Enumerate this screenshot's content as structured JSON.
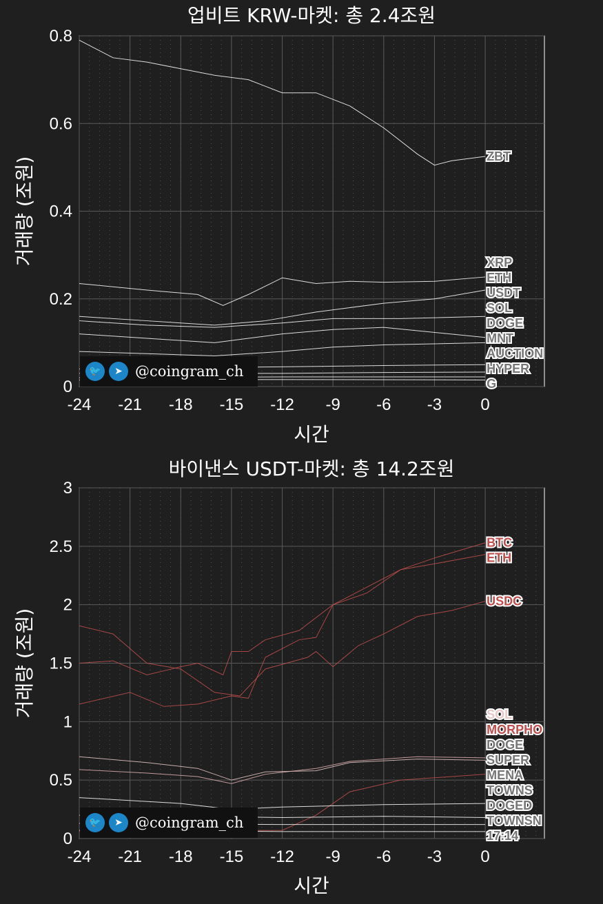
{
  "watermark": {
    "handle": "@coingram_ch",
    "icons": [
      "twitter-icon",
      "telegram-icon"
    ]
  },
  "chart_data": [
    {
      "type": "line",
      "title": "업비트 KRW-마켓: 총 2.4조원",
      "xlabel": "시간",
      "ylabel": "거래량 (조원)",
      "xlim": [
        -24,
        3.5
      ],
      "ylim": [
        0,
        0.8
      ],
      "xticks": [
        -24,
        -21,
        -18,
        -15,
        -12,
        -9,
        -6,
        -3,
        0
      ],
      "yticks": [
        0,
        0.2,
        0.4,
        0.6,
        0.8
      ],
      "ytick_labels": [
        "0",
        "0.2",
        "0.4",
        "0.6",
        "0.8"
      ],
      "grid": true,
      "series": [
        {
          "name": "ZBT",
          "color": "#ffffff",
          "x": [
            -24,
            -22,
            -20,
            -18,
            -16,
            -14,
            -12,
            -10,
            -8,
            -6,
            -4,
            -3,
            -2,
            0
          ],
          "y": [
            0.79,
            0.75,
            0.74,
            0.725,
            0.71,
            0.7,
            0.67,
            0.67,
            0.64,
            0.59,
            0.53,
            0.505,
            0.515,
            0.525
          ]
        },
        {
          "name": "XRP",
          "color": "#ffffff",
          "x": [
            -24,
            -20,
            -17,
            -15.5,
            -14,
            -12,
            -10,
            -8,
            -6,
            -3,
            0
          ],
          "y": [
            0.235,
            0.22,
            0.21,
            0.185,
            0.21,
            0.248,
            0.235,
            0.24,
            0.238,
            0.24,
            0.25
          ]
        },
        {
          "name": "ETH",
          "color": "#ffffff",
          "x": [
            -24,
            -20,
            -16,
            -13,
            -10,
            -8,
            -6,
            -3,
            0
          ],
          "y": [
            0.16,
            0.15,
            0.14,
            0.15,
            0.17,
            0.18,
            0.19,
            0.2,
            0.22
          ]
        },
        {
          "name": "USDT",
          "color": "#ffffff",
          "x": [
            -24,
            -20,
            -16,
            -12,
            -9,
            -5,
            0
          ],
          "y": [
            0.15,
            0.14,
            0.135,
            0.145,
            0.155,
            0.155,
            0.16
          ]
        },
        {
          "name": "SOL",
          "color": "#ffffff",
          "x": [
            -24,
            -20,
            -16,
            -14,
            -12,
            -9,
            -6,
            0
          ],
          "y": [
            0.12,
            0.11,
            0.1,
            0.11,
            0.12,
            0.13,
            0.135,
            0.112
          ]
        },
        {
          "name": "DOGE",
          "color": "#ffffff",
          "x": [
            -24,
            -20,
            -16,
            -14,
            -12,
            -9,
            -6,
            0
          ],
          "y": [
            0.08,
            0.075,
            0.07,
            0.075,
            0.08,
            0.09,
            0.095,
            0.1
          ]
        },
        {
          "name": "MNT",
          "color": "#ffffff",
          "x": [
            -24,
            -12,
            -6,
            0
          ],
          "y": [
            0.04,
            0.045,
            0.048,
            0.05
          ]
        },
        {
          "name": "AUCTION",
          "color": "#ffffff",
          "x": [
            -24,
            -12,
            -6,
            0
          ],
          "y": [
            0.03,
            0.03,
            0.032,
            0.033
          ]
        },
        {
          "name": "",
          "color": "#ffffff",
          "x": [
            -24,
            -12,
            0
          ],
          "y": [
            0.02,
            0.022,
            0.022
          ]
        },
        {
          "name": "HYPER",
          "color": "#ffffff",
          "x": [
            -24,
            -12,
            0
          ],
          "y": [
            0.015,
            0.016,
            0.015
          ]
        }
      ],
      "end_labels": [
        "ZBT",
        "XRP",
        "ETH",
        "USDT",
        "SOL",
        "DOGE",
        "MNT",
        "AUCTION",
        "HYPER",
        "G"
      ]
    },
    {
      "type": "line",
      "title": "바이낸스 USDT-마켓: 총 14.2조원",
      "xlabel": "시간",
      "ylabel": "거래량 (조원)",
      "xlim": [
        -24,
        3.5
      ],
      "ylim": [
        0,
        3
      ],
      "xticks": [
        -24,
        -21,
        -18,
        -15,
        -12,
        -9,
        -6,
        -3,
        0
      ],
      "yticks": [
        0,
        0.5,
        1,
        1.5,
        2,
        2.5,
        3
      ],
      "ytick_labels": [
        "0",
        "0.5",
        "1",
        "1.5",
        "2",
        "2.5",
        "3"
      ],
      "grid": true,
      "series": [
        {
          "name": "BTC",
          "color": "#c0504d",
          "x": [
            -24,
            -22,
            -20,
            -18,
            -17,
            -15.5,
            -15,
            -14,
            -13,
            -11,
            -9,
            -7,
            -5,
            -3,
            0
          ],
          "y": [
            1.5,
            1.52,
            1.4,
            1.47,
            1.5,
            1.4,
            1.6,
            1.6,
            1.7,
            1.78,
            2.0,
            2.1,
            2.3,
            2.4,
            2.53
          ]
        },
        {
          "name": "ETH",
          "color": "#c0504d",
          "x": [
            -24,
            -21,
            -19,
            -17,
            -15,
            -14,
            -13,
            -11,
            -10,
            -9,
            -7,
            -5,
            -3,
            0
          ],
          "y": [
            1.15,
            1.25,
            1.13,
            1.15,
            1.22,
            1.2,
            1.55,
            1.7,
            1.72,
            2.0,
            2.15,
            2.3,
            2.35,
            2.43
          ]
        },
        {
          "name": "USDC",
          "color": "#c0504d",
          "x": [
            -24,
            -22,
            -20,
            -18,
            -16,
            -14.5,
            -13,
            -10.5,
            -10,
            -9,
            -7.5,
            -6,
            -4,
            -2,
            0
          ],
          "y": [
            1.82,
            1.75,
            1.5,
            1.45,
            1.25,
            1.22,
            1.45,
            1.55,
            1.6,
            1.47,
            1.65,
            1.75,
            1.9,
            1.95,
            2.03
          ]
        },
        {
          "name": "SOL",
          "color": "#e8c8c8",
          "x": [
            -24,
            -20,
            -17,
            -15,
            -13,
            -10,
            -8,
            -4,
            0
          ],
          "y": [
            0.7,
            0.65,
            0.6,
            0.5,
            0.57,
            0.58,
            0.65,
            0.68,
            0.67
          ]
        },
        {
          "name": "",
          "color": "#e0b0b0",
          "x": [
            -24,
            -20,
            -17,
            -15,
            -13,
            -10,
            -8,
            -4,
            0
          ],
          "y": [
            0.59,
            0.56,
            0.53,
            0.47,
            0.55,
            0.6,
            0.66,
            0.7,
            0.69
          ]
        },
        {
          "name": "MORPHO",
          "color": "#c0504d",
          "x": [
            -24,
            -12,
            -10,
            -8,
            -5,
            0
          ],
          "y": [
            0.06,
            0.07,
            0.2,
            0.4,
            0.5,
            0.55
          ]
        },
        {
          "name": "DOGE",
          "color": "#ffffff",
          "x": [
            -24,
            -18,
            -15,
            -12,
            -6,
            0
          ],
          "y": [
            0.35,
            0.3,
            0.25,
            0.27,
            0.29,
            0.3
          ]
        },
        {
          "name": "SUPER",
          "color": "#ffffff",
          "x": [
            -24,
            -12,
            -6,
            0
          ],
          "y": [
            0.2,
            0.18,
            0.19,
            0.18
          ]
        },
        {
          "name": "MENA",
          "color": "#ffffff",
          "x": [
            -24,
            -12,
            -6,
            0
          ],
          "y": [
            0.13,
            0.12,
            0.12,
            0.12
          ]
        },
        {
          "name": "TOWNS",
          "color": "#ffffff",
          "x": [
            -24,
            -12,
            -6,
            0
          ],
          "y": [
            0.07,
            0.06,
            0.06,
            0.06
          ]
        }
      ],
      "end_labels": [
        "BTC",
        "ETH",
        "USDC",
        "SOL",
        "MORPHO",
        "DOGED",
        "SUPER",
        "MENA",
        "TOWNSN",
        "17:14"
      ]
    }
  ]
}
